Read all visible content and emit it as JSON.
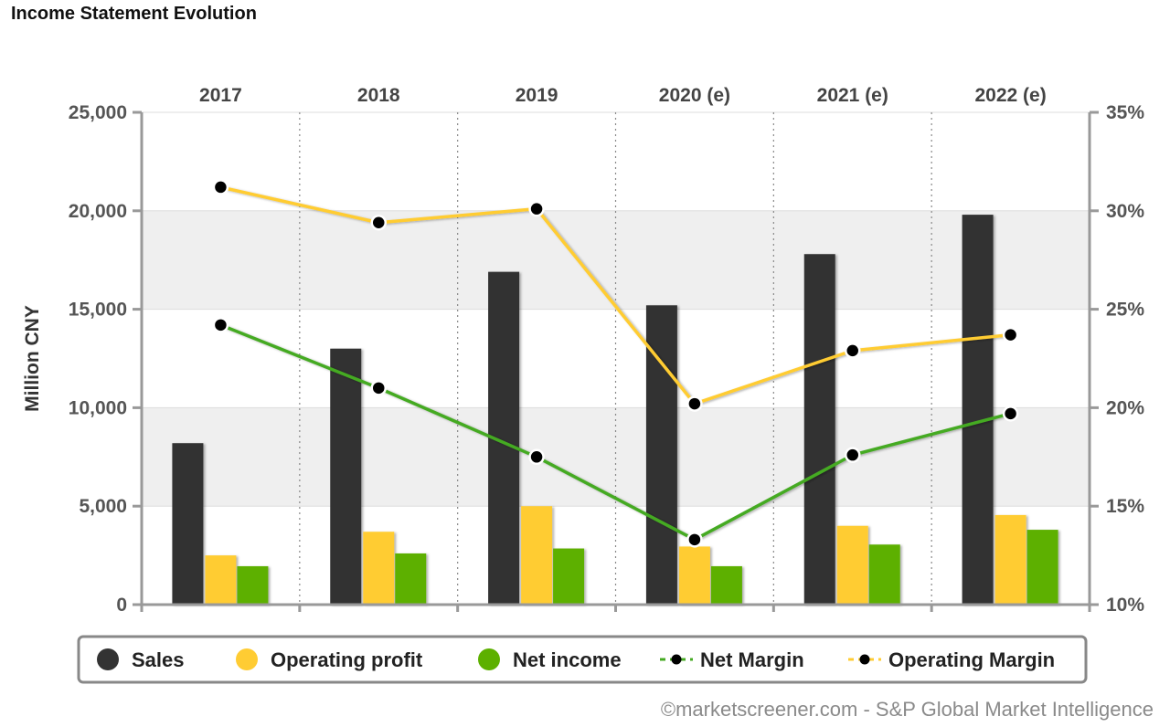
{
  "chart_data": {
    "type": "bar",
    "title": "Income Statement Evolution",
    "categories": [
      "2017",
      "2018",
      "2019",
      "2020 (e)",
      "2021 (e)",
      "2022 (e)"
    ],
    "series": [
      {
        "name": "Sales",
        "kind": "bar",
        "axis": "left",
        "color": "#333333",
        "values": [
          8200,
          13000,
          16900,
          15200,
          17800,
          19800
        ]
      },
      {
        "name": "Operating profit",
        "kind": "bar",
        "axis": "left",
        "color": "#FFCC33",
        "values": [
          2500,
          3700,
          5000,
          2950,
          4000,
          4550
        ]
      },
      {
        "name": "Net income",
        "kind": "bar",
        "axis": "left",
        "color": "#5DB000",
        "values": [
          1950,
          2600,
          2850,
          1950,
          3050,
          3800
        ]
      },
      {
        "name": "Net Margin",
        "kind": "line",
        "axis": "right",
        "color": "#44AA22",
        "values": [
          24.2,
          21.0,
          17.5,
          13.3,
          17.6,
          19.7
        ]
      },
      {
        "name": "Operating Margin",
        "kind": "line",
        "axis": "right",
        "color": "#FFCC33",
        "values": [
          31.2,
          29.4,
          30.1,
          20.2,
          22.9,
          23.7
        ]
      }
    ],
    "ylabel": "Million CNY",
    "ylim": [
      0,
      25000
    ],
    "yticks": [
      "0",
      "5,000",
      "10,000",
      "15,000",
      "20,000",
      "25,000"
    ],
    "y2lim": [
      10,
      35
    ],
    "y2ticks": [
      "10%",
      "15%",
      "20%",
      "25%",
      "30%",
      "35%"
    ],
    "legend_position": "bottom"
  },
  "credit": "©marketscreener.com - S&P Global Market Intelligence"
}
